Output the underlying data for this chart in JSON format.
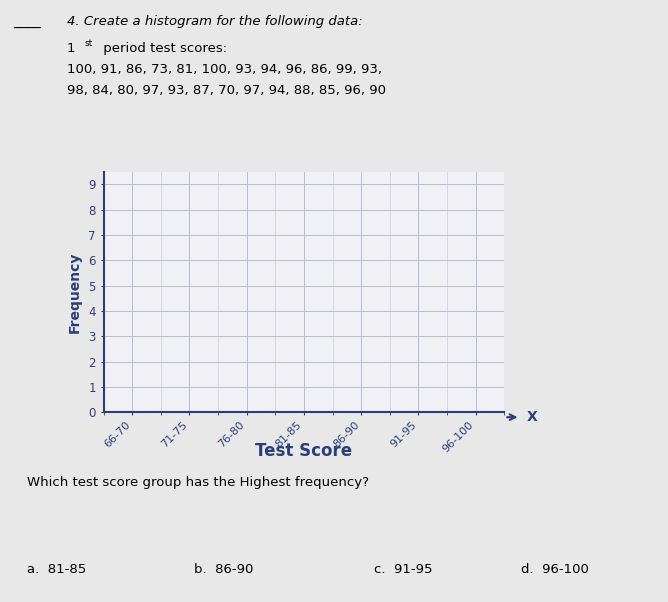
{
  "title_line1": "4. Create a histogram for the following data:",
  "title_line2_a": "1",
  "title_line2_b": "st",
  "title_line2_c": " period test scores:",
  "data_line3": "100, 91, 86, 73, 81, 100, 93, 94, 96, 86, 99, 93,",
  "data_line4": "98, 84, 80, 97, 93, 87, 70, 97, 94, 88, 85, 96, 90",
  "question": "Which test score group has the Highest frequency?",
  "answer_a": "a.  81-85",
  "answer_b": "b.  86-90",
  "answer_c": "c.  91-95",
  "answer_d": "d.  96-100",
  "xlabel": "Test Score",
  "ylabel": "Frequency",
  "x_labels": [
    "66-70",
    "71-75",
    "76-80",
    "81-85",
    "86-90",
    "91-95",
    "96-100"
  ],
  "yticks": [
    0,
    1,
    2,
    3,
    4,
    5,
    6,
    7,
    8,
    9
  ],
  "ylim": [
    0,
    9.5
  ],
  "grid_color": "#b8bdd4",
  "axis_color": "#2c3e7a",
  "text_color": "#2c3e7a",
  "bg_color": "#e8e8e8",
  "plot_bg": "#f0f0f5"
}
